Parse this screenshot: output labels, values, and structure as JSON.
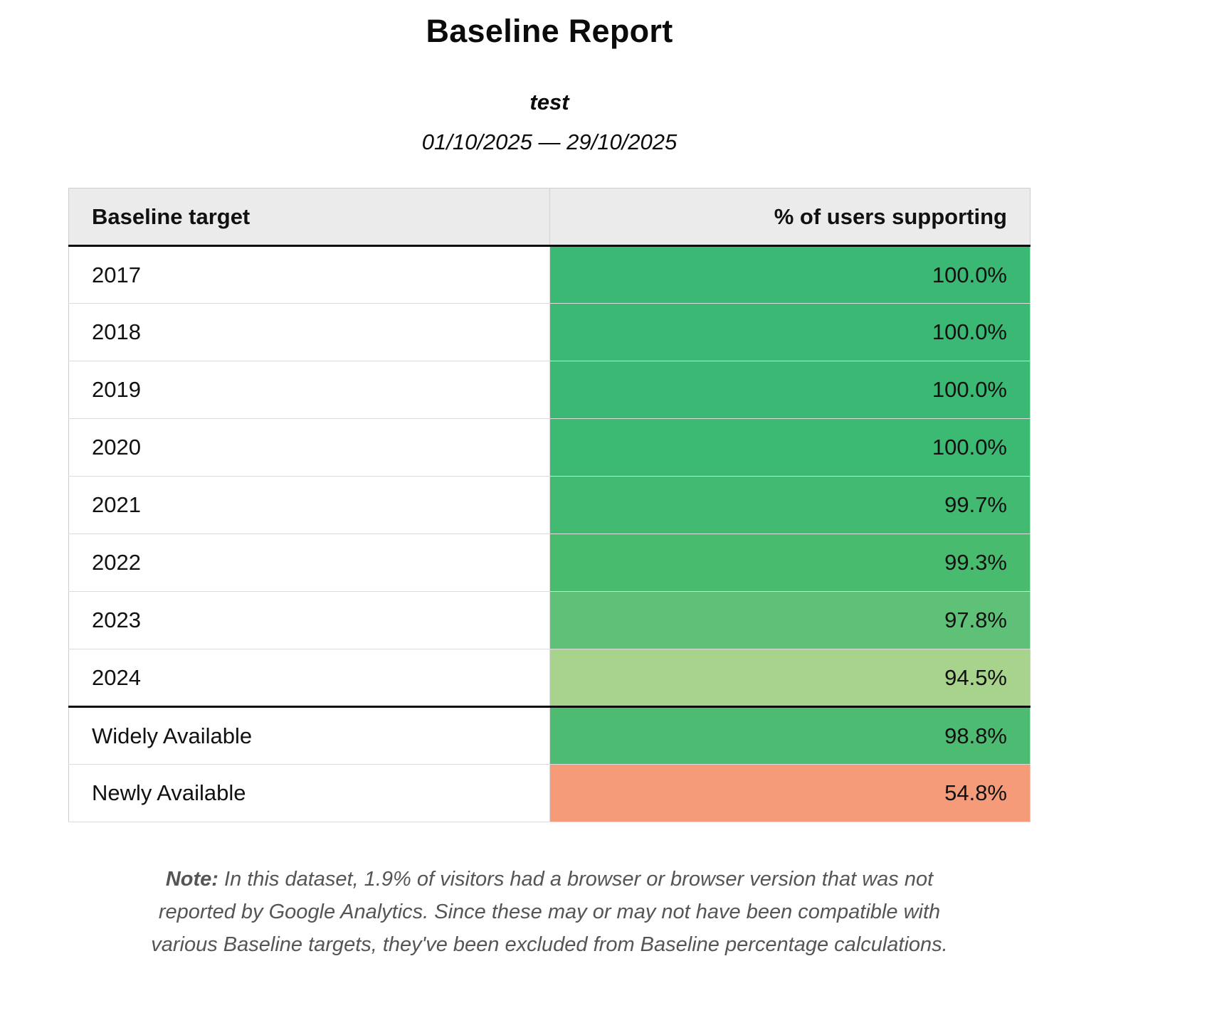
{
  "report": {
    "title": "Baseline Report",
    "subtitle": "test",
    "date_range": "01/10/2025 — 29/10/2025"
  },
  "table": {
    "headers": {
      "target": "Baseline target",
      "support": "% of users supporting"
    },
    "rows": [
      {
        "label": "2017",
        "value": "100.0%",
        "color": "#3bb873"
      },
      {
        "label": "2018",
        "value": "100.0%",
        "color": "#3bb873"
      },
      {
        "label": "2019",
        "value": "100.0%",
        "color": "#3bb873"
      },
      {
        "label": "2020",
        "value": "100.0%",
        "color": "#3cb972"
      },
      {
        "label": "2021",
        "value": "99.7%",
        "color": "#42ba71"
      },
      {
        "label": "2022",
        "value": "99.3%",
        "color": "#49bb6f"
      },
      {
        "label": "2023",
        "value": "97.8%",
        "color": "#5fc077"
      },
      {
        "label": "2024",
        "value": "94.5%",
        "color": "#a7d38d"
      },
      {
        "label": "Widely Available",
        "value": "98.8%",
        "color": "#4dbc72"
      },
      {
        "label": "Newly Available",
        "value": "54.8%",
        "color": "#f69b7a"
      }
    ]
  },
  "note": {
    "label": "Note:",
    "text": "In this dataset, 1.9% of visitors had a browser or browser version that was not reported by Google Analytics. Since these may or may not have been compatible with various Baseline targets, they've been excluded from Baseline percentage calculations."
  }
}
